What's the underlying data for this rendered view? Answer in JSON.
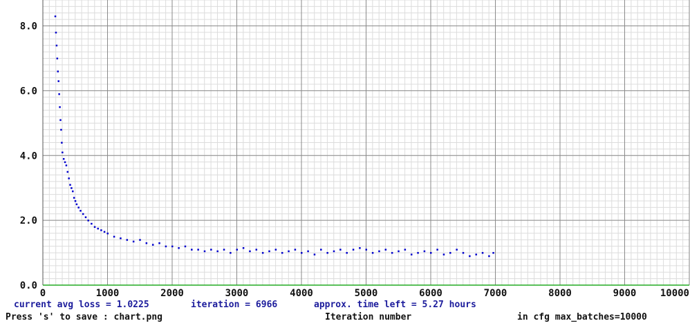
{
  "chart_data": {
    "type": "scatter",
    "title": "",
    "xlabel": "Iteration number",
    "ylabel": "",
    "xlim": [
      0,
      10000
    ],
    "ylim": [
      0,
      8.8
    ],
    "x_ticks": [
      0,
      1000,
      2000,
      3000,
      4000,
      5000,
      6000,
      7000,
      8000,
      9000,
      10000
    ],
    "x_tick_labels": [
      "0",
      "1000",
      "2000",
      "3000",
      "4000",
      "5000",
      "6000",
      "7000",
      "8000",
      "9000",
      "10000"
    ],
    "y_ticks": [
      0,
      2,
      4,
      6,
      8
    ],
    "y_tick_labels": [
      "0.0",
      "2.0",
      "4.0",
      "6.0",
      "8.0"
    ],
    "grid": true,
    "series": [
      {
        "color": "#0000cc",
        "x": [
          190,
          200,
          210,
          220,
          230,
          240,
          250,
          260,
          270,
          280,
          290,
          300,
          320,
          340,
          360,
          380,
          400,
          420,
          440,
          460,
          480,
          500,
          520,
          550,
          580,
          620,
          660,
          700,
          750,
          800,
          850,
          900,
          950,
          1000,
          1100,
          1200,
          1300,
          1400,
          1500,
          1600,
          1700,
          1800,
          1900,
          2000,
          2100,
          2200,
          2300,
          2400,
          2500,
          2600,
          2700,
          2800,
          2900,
          3000,
          3100,
          3200,
          3300,
          3400,
          3500,
          3600,
          3700,
          3800,
          3900,
          4000,
          4100,
          4200,
          4300,
          4400,
          4500,
          4600,
          4700,
          4800,
          4900,
          5000,
          5100,
          5200,
          5300,
          5400,
          5500,
          5600,
          5700,
          5800,
          5900,
          6000,
          6100,
          6200,
          6300,
          6400,
          6500,
          6600,
          6700,
          6800,
          6900,
          6966
        ],
        "y": [
          8.3,
          7.8,
          7.4,
          7.0,
          6.6,
          6.3,
          5.9,
          5.5,
          5.1,
          4.8,
          4.4,
          4.1,
          3.9,
          3.8,
          3.7,
          3.5,
          3.3,
          3.1,
          3.0,
          2.9,
          2.7,
          2.6,
          2.5,
          2.4,
          2.3,
          2.2,
          2.1,
          2.0,
          1.9,
          1.8,
          1.75,
          1.7,
          1.65,
          1.6,
          1.5,
          1.45,
          1.4,
          1.35,
          1.4,
          1.3,
          1.25,
          1.3,
          1.2,
          1.2,
          1.15,
          1.2,
          1.1,
          1.1,
          1.05,
          1.1,
          1.05,
          1.1,
          1.0,
          1.1,
          1.15,
          1.05,
          1.1,
          1.0,
          1.05,
          1.1,
          1.0,
          1.05,
          1.1,
          1.0,
          1.05,
          0.95,
          1.1,
          1.0,
          1.05,
          1.1,
          1.0,
          1.1,
          1.15,
          1.1,
          1.0,
          1.05,
          1.1,
          1.0,
          1.05,
          1.1,
          0.95,
          1.0,
          1.05,
          1.0,
          1.1,
          0.95,
          1.0,
          1.1,
          1.0,
          0.9,
          0.95,
          1.0,
          0.9,
          1.0
        ]
      }
    ]
  },
  "status": {
    "loss_text": "current avg loss = 1.0225",
    "iteration_text": "iteration = 6966",
    "time_left_text": "approx. time left = 5.27 hours",
    "save_hint": "Press 's' to save : chart.png",
    "max_batches_text": "in cfg max_batches=10000"
  }
}
